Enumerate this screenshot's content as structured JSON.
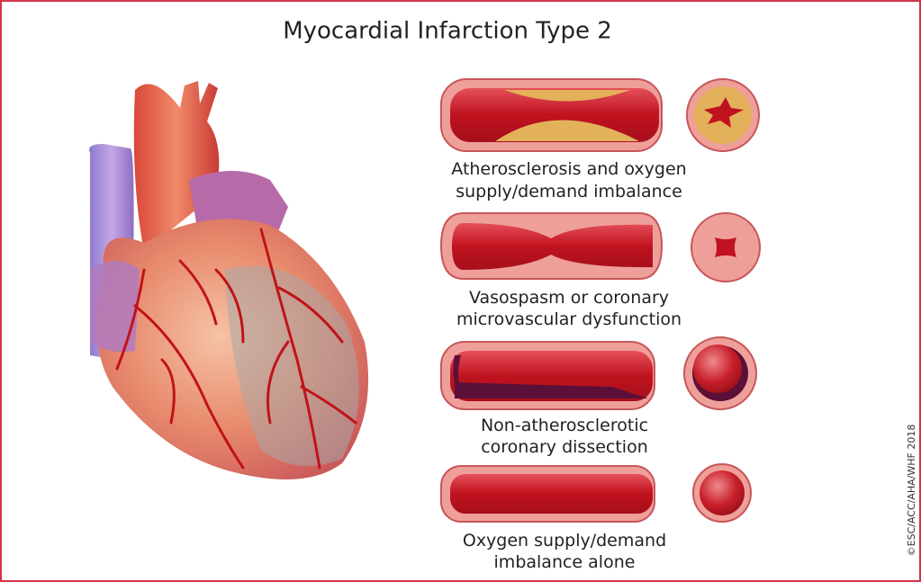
{
  "title": "Myocardial Infarction Type 2",
  "panels": [
    {
      "caption": [
        "Atherosclerosis and oxygen",
        "supply/demand imbalance"
      ]
    },
    {
      "caption": [
        "Vasospasm or coronary",
        "microvascular dysfunction"
      ]
    },
    {
      "caption": [
        "Non-atherosclerotic",
        "coronary dissection"
      ]
    },
    {
      "caption": [
        "Oxygen supply/demand",
        "imbalance alone"
      ]
    }
  ],
  "copyright": "©ESC/ACC/AHA/WHF 2018"
}
